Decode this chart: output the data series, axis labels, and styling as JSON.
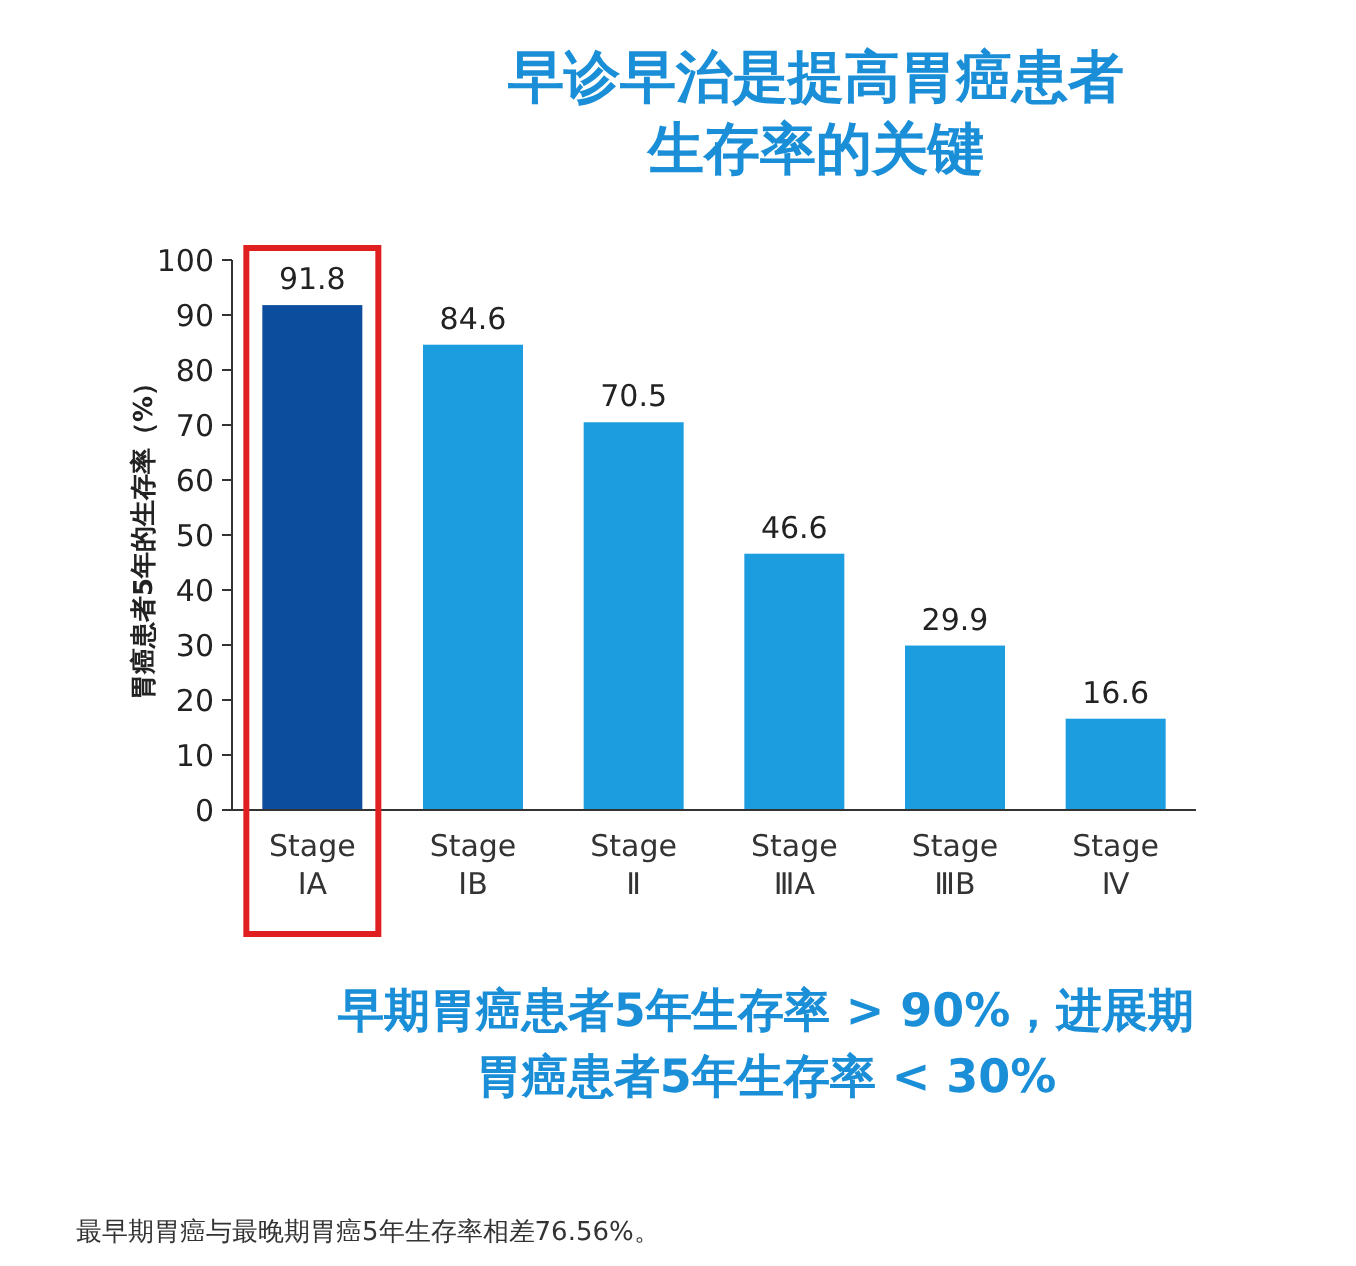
{
  "chart_data": {
    "type": "bar",
    "title": "早诊早治是提高胃癌患者生存率的关键",
    "ylabel": "胃癌患者5年的生存率（%）",
    "categories": [
      "Stage\nⅠA",
      "Stage\nⅠB",
      "Stage\nⅡ",
      "Stage\nⅢA",
      "Stage\nⅢB",
      "Stage\nⅣ"
    ],
    "values": [
      91.8,
      84.6,
      70.5,
      46.6,
      29.9,
      16.6
    ],
    "colors": [
      "#0d4d9e",
      "#1c9de0",
      "#1c9de0",
      "#1c9de0",
      "#1c9de0",
      "#1c9de0"
    ],
    "ylim": [
      0,
      100
    ],
    "yticks": [
      0,
      10,
      20,
      30,
      40,
      50,
      60,
      70,
      80,
      90,
      100
    ],
    "grid": false,
    "data_labels": true,
    "annotations": [
      "早期胃癌患者5年生存率 > 90%，进展期胃癌患者5年生存率 < 30%",
      "最早期胃癌与最晚期胃癌5年生存率相差76.56%。"
    ]
  }
}
